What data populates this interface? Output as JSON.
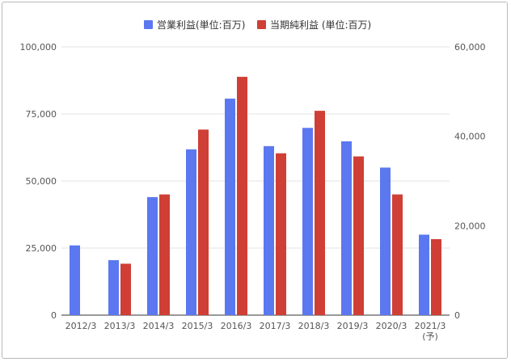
{
  "chart_data": {
    "type": "bar",
    "categories": [
      "2012/3",
      "2013/3",
      "2014/3",
      "2015/3",
      "2016/3",
      "2017/3",
      "2018/3",
      "2019/3",
      "2020/3",
      "2021/3"
    ],
    "category_sublabels": [
      "",
      "",
      "",
      "",
      "",
      "",
      "",
      "",
      "",
      "(予)"
    ],
    "series": [
      {
        "name": "営業利益(単位:百万)",
        "axis": "left",
        "color": "#5b78f0",
        "values": [
          26000,
          20500,
          44000,
          61800,
          80700,
          63000,
          69800,
          64800,
          55000,
          30000
        ]
      },
      {
        "name": "当期純利益 (単位:百万)",
        "axis": "right",
        "color": "#cf3f35",
        "values": [
          null,
          11500,
          27000,
          41500,
          53300,
          36200,
          45700,
          35500,
          27000,
          17000
        ]
      }
    ],
    "left_axis": {
      "ylim": [
        0,
        100000
      ],
      "ticks": [
        "0",
        "25,000",
        "50,000",
        "75,000",
        "100,000"
      ]
    },
    "right_axis": {
      "ylim": [
        0,
        60000
      ],
      "ticks": [
        "0",
        "20,000",
        "40,000",
        "60,000"
      ]
    },
    "grid": true,
    "legend_position": "top"
  }
}
